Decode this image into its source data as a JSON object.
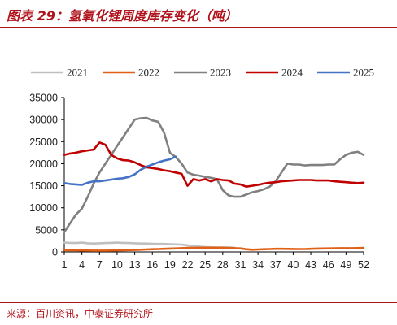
{
  "header": {
    "title": "图表 29：氢氧化锂周度库存变化（吨）"
  },
  "footer": {
    "source": "来源：百川资讯，中泰证券研究所"
  },
  "colors": {
    "brand": "#b0121b"
  },
  "chart_data": {
    "type": "line",
    "title": "图表 29：氢氧化锂周度库存变化（吨）",
    "xlabel": "",
    "ylabel": "",
    "unit": "吨",
    "x_ticks": [
      1,
      4,
      7,
      10,
      13,
      16,
      19,
      22,
      25,
      28,
      31,
      34,
      37,
      40,
      43,
      46,
      49,
      52
    ],
    "y_ticks": [
      0,
      5000,
      10000,
      15000,
      20000,
      25000,
      30000,
      35000
    ],
    "ylim": [
      0,
      35000
    ],
    "xlim": [
      1,
      52
    ],
    "grid": false,
    "legend_position": "top",
    "series": [
      {
        "name": "2021",
        "color": "#bfbfbf",
        "x": [
          1,
          2,
          3,
          4,
          5,
          6,
          7,
          8,
          9,
          10,
          11,
          12,
          13,
          14,
          15,
          16,
          17,
          18,
          19,
          20,
          21,
          22,
          23,
          24,
          25,
          26,
          27,
          28,
          29,
          30
        ],
        "values": [
          2100,
          2050,
          2000,
          2100,
          1950,
          1900,
          1950,
          2000,
          2050,
          2100,
          2050,
          2000,
          1950,
          1900,
          1900,
          1850,
          1800,
          1800,
          1750,
          1700,
          1650,
          1500,
          1300,
          1200,
          1100,
          1050,
          1000,
          1000,
          1000,
          950
        ]
      },
      {
        "name": "2022",
        "color": "#e06016",
        "x": [
          1,
          2,
          3,
          4,
          5,
          6,
          7,
          8,
          9,
          10,
          11,
          12,
          13,
          14,
          15,
          16,
          17,
          18,
          19,
          20,
          21,
          22,
          23,
          24,
          25,
          26,
          27,
          28,
          29,
          30,
          31,
          32,
          33,
          34,
          35,
          36,
          37,
          38,
          39,
          40,
          41,
          42,
          43,
          44,
          45,
          46,
          47,
          48,
          49,
          50,
          51,
          52
        ],
        "values": [
          400,
          380,
          360,
          340,
          320,
          300,
          300,
          300,
          320,
          350,
          380,
          420,
          450,
          500,
          550,
          600,
          650,
          700,
          750,
          800,
          850,
          900,
          900,
          950,
          950,
          950,
          950,
          950,
          900,
          850,
          800,
          600,
          500,
          550,
          600,
          650,
          700,
          700,
          680,
          660,
          650,
          650,
          700,
          750,
          780,
          800,
          820,
          850,
          850,
          850,
          870,
          900
        ]
      },
      {
        "name": "2023",
        "color": "#808080",
        "x": [
          1,
          2,
          3,
          4,
          5,
          6,
          7,
          8,
          9,
          10,
          11,
          12,
          13,
          14,
          15,
          16,
          17,
          18,
          19,
          20,
          21,
          22,
          23,
          24,
          25,
          26,
          27,
          28,
          29,
          30,
          31,
          32,
          33,
          34,
          35,
          36,
          37,
          38,
          39,
          40,
          41,
          42,
          43,
          44,
          45,
          46,
          47,
          48,
          49,
          50,
          51,
          52
        ],
        "values": [
          4500,
          6500,
          8500,
          9800,
          12500,
          15500,
          18000,
          20000,
          22000,
          24000,
          26000,
          28000,
          30000,
          30300,
          30400,
          29800,
          29500,
          27000,
          22500,
          21500,
          20000,
          18000,
          17500,
          17300,
          17000,
          16800,
          16500,
          14000,
          12800,
          12500,
          12500,
          13000,
          13500,
          13800,
          14200,
          14800,
          16000,
          18000,
          20000,
          19800,
          19800,
          19600,
          19700,
          19700,
          19700,
          19800,
          19800,
          21000,
          22000,
          22500,
          22700,
          22000
        ]
      },
      {
        "name": "2024",
        "color": "#c00000",
        "x": [
          1,
          2,
          3,
          4,
          5,
          6,
          7,
          8,
          9,
          10,
          11,
          12,
          13,
          14,
          15,
          16,
          17,
          18,
          19,
          20,
          21,
          22,
          23,
          24,
          25,
          26,
          27,
          28,
          29,
          30,
          31,
          32,
          33,
          34,
          35,
          36,
          37,
          38,
          39,
          40,
          41,
          42,
          43,
          44,
          45,
          46,
          47,
          48,
          49,
          50,
          51,
          52
        ],
        "values": [
          22000,
          22300,
          22500,
          22800,
          23000,
          23200,
          24800,
          24300,
          22000,
          21200,
          20800,
          20700,
          20300,
          19700,
          19200,
          19000,
          18800,
          18500,
          18300,
          18000,
          17700,
          15000,
          16500,
          16200,
          16500,
          16000,
          16500,
          16300,
          16200,
          15500,
          15300,
          14800,
          15000,
          15200,
          15500,
          15700,
          15800,
          16000,
          16100,
          16200,
          16300,
          16300,
          16300,
          16200,
          16200,
          16200,
          16000,
          15900,
          15800,
          15700,
          15600,
          15700
        ]
      },
      {
        "name": "2025",
        "color": "#4472c4",
        "x": [
          1,
          2,
          3,
          4,
          5,
          6,
          7,
          8,
          9,
          10,
          11,
          12,
          13,
          14,
          15,
          16,
          17,
          18,
          19,
          20
        ],
        "values": [
          15600,
          15400,
          15300,
          15200,
          15700,
          16000,
          16000,
          16200,
          16400,
          16600,
          16700,
          17000,
          17600,
          18600,
          19300,
          19800,
          20300,
          20700,
          21000,
          21600
        ]
      }
    ]
  }
}
